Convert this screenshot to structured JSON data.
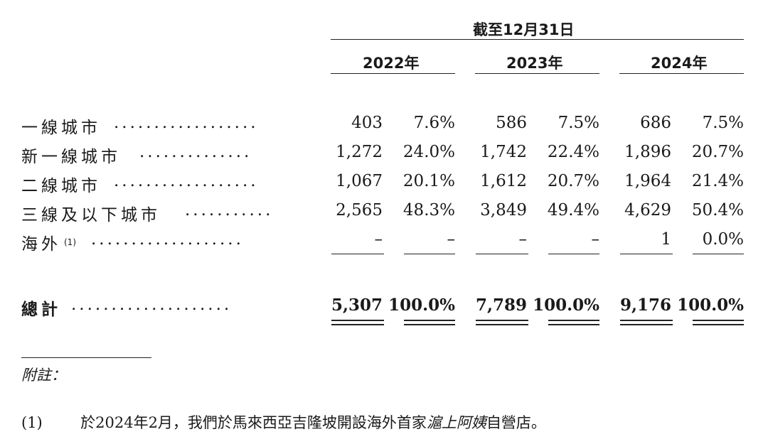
{
  "header": {
    "period_label": "截至12月31日",
    "years": [
      "2022年",
      "2023年",
      "2024年"
    ]
  },
  "rows": [
    {
      "label": "一線城市",
      "sup": "",
      "dots": "..................",
      "values": [
        "403",
        "7.6%",
        "586",
        "7.5%",
        "686",
        "7.5%"
      ]
    },
    {
      "label": "新一線城市",
      "sup": "",
      "dots": "..............",
      "values": [
        "1,272",
        "24.0%",
        "1,742",
        "22.4%",
        "1,896",
        "20.7%"
      ]
    },
    {
      "label": "二線城市",
      "sup": "",
      "dots": "..................",
      "values": [
        "1,067",
        "20.1%",
        "1,612",
        "20.7%",
        "1,964",
        "21.4%"
      ]
    },
    {
      "label": "三線及以下城市",
      "sup": "",
      "dots": "...........",
      "values": [
        "2,565",
        "48.3%",
        "3,849",
        "49.4%",
        "4,629",
        "50.4%"
      ]
    },
    {
      "label": "海外",
      "sup": "(1)",
      "dots": "...................",
      "values": [
        "–",
        "–",
        "–",
        "–",
        "1",
        "0.0%"
      ]
    }
  ],
  "total": {
    "label": "總計",
    "dots": "....................",
    "values": [
      "5,307",
      "100.0%",
      "7,789",
      "100.0%",
      "9,176",
      "100.0%"
    ]
  },
  "notes": {
    "title": "附註：",
    "items": [
      {
        "marker": "(1)",
        "text_before": "於2024年2月，我們於馬來西亞吉隆坡開設海外首家",
        "text_italic": "滬上阿姨",
        "text_after": "自營店。"
      }
    ]
  }
}
